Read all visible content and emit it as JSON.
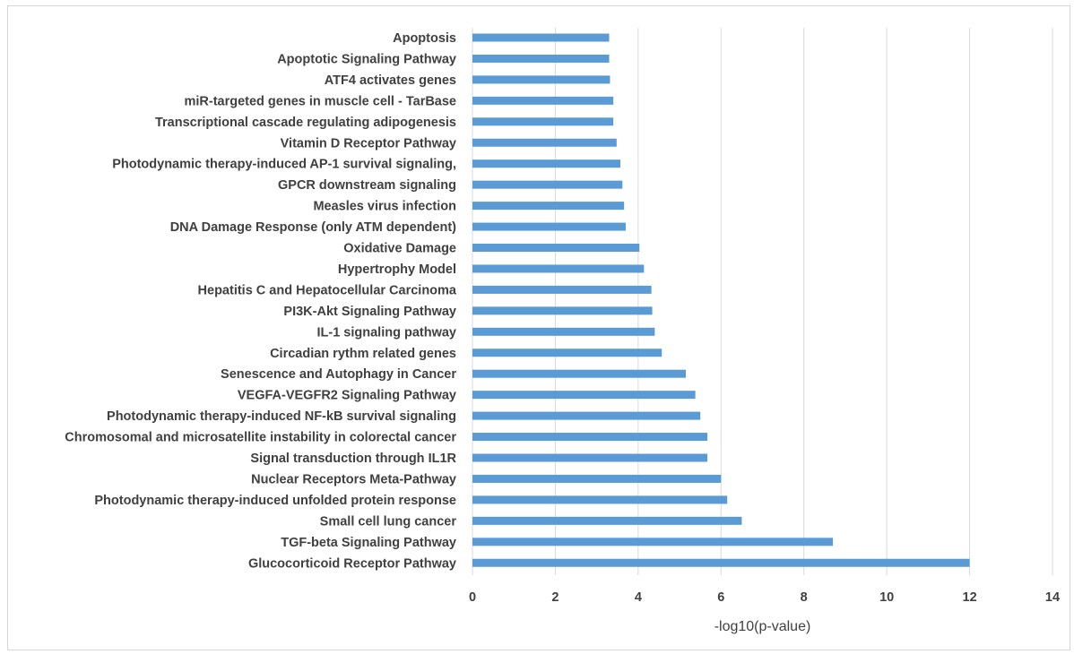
{
  "chart_data": {
    "type": "bar",
    "orientation": "horizontal",
    "title": "",
    "xlabel": "-log10(p-value)",
    "ylabel": "",
    "xlim": [
      0,
      14
    ],
    "xticks": [
      0,
      2,
      4,
      6,
      8,
      10,
      12,
      14
    ],
    "grid": "vertical",
    "legend": "none",
    "bar_color": "#5b9bd5",
    "categories": [
      "Apoptosis",
      "Apoptotic Signaling Pathway",
      "ATF4 activates genes",
      "miR-targeted genes in muscle cell - TarBase",
      "Transcriptional cascade regulating adipogenesis",
      "Vitamin D Receptor Pathway",
      "Photodynamic therapy-induced AP-1 survival signaling,",
      "GPCR downstream signaling",
      "Measles virus infection",
      "DNA Damage Response (only ATM dependent)",
      "Oxidative Damage",
      "Hypertrophy Model",
      "Hepatitis C and Hepatocellular Carcinoma",
      "PI3K-Akt Signaling Pathway",
      "IL-1 signaling pathway",
      "Circadian rythm related genes",
      "Senescence and Autophagy in Cancer",
      "VEGFA-VEGFR2 Signaling Pathway",
      "Photodynamic therapy-induced NF-kB survival signaling",
      "Chromosomal and microsatellite instability in colorectal cancer",
      "Signal transduction through IL1R",
      "Nuclear Receptors Meta-Pathway",
      "Photodynamic therapy-induced unfolded protein response",
      "Small cell lung cancer",
      "TGF-beta Signaling Pathway",
      "Glucocorticoid Receptor Pathway"
    ],
    "values": [
      3.3,
      3.3,
      3.32,
      3.4,
      3.4,
      3.48,
      3.57,
      3.62,
      3.66,
      3.7,
      4.03,
      4.14,
      4.32,
      4.34,
      4.4,
      4.57,
      5.15,
      5.38,
      5.5,
      5.67,
      5.67,
      6.0,
      6.15,
      6.5,
      8.7,
      12.0
    ]
  }
}
